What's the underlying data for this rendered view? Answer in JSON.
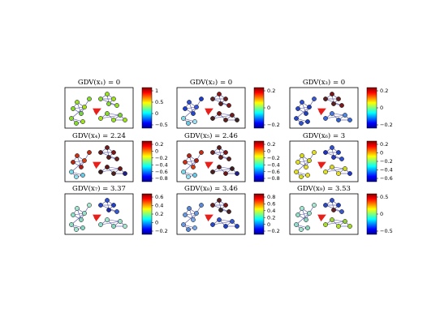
{
  "colors": {
    "edge": "#4a4aa8",
    "arrow": "#e8201c",
    "frame": "#000000",
    "node_stroke": "#000000"
  },
  "graph": {
    "nodes": [
      {
        "id": 0
      },
      {
        "id": 1
      },
      {
        "id": 2
      },
      {
        "id": 3
      },
      {
        "id": 4
      },
      {
        "id": 5
      },
      {
        "id": 6
      },
      {
        "id": 7
      },
      {
        "id": 8
      },
      {
        "id": 9
      },
      {
        "id": 10
      },
      {
        "id": 11
      },
      {
        "id": 12
      },
      {
        "id": 13
      },
      {
        "id": 14
      },
      {
        "id": 15
      },
      {
        "id": 16
      },
      {
        "id": 17
      }
    ],
    "edges": [
      [
        0,
        1
      ],
      [
        1,
        2
      ],
      [
        0,
        2
      ],
      [
        0,
        3
      ],
      [
        1,
        3
      ],
      [
        2,
        3
      ],
      [
        3,
        4
      ],
      [
        5,
        6
      ],
      [
        6,
        7
      ],
      [
        5,
        7
      ],
      [
        7,
        8
      ],
      [
        6,
        8
      ],
      [
        8,
        9
      ],
      [
        5,
        9
      ],
      [
        10,
        11
      ],
      [
        11,
        12
      ],
      [
        12,
        13
      ],
      [
        10,
        13
      ],
      [
        11,
        13
      ],
      [
        13,
        14
      ],
      [
        12,
        14
      ],
      [
        3,
        15
      ],
      [
        15,
        16
      ],
      [
        16,
        17
      ],
      [
        15,
        17
      ]
    ]
  },
  "panels": [
    {
      "title": "GDV(x₁) = 0",
      "colorbar": {
        "ticks": [
          "1",
          "0.5",
          "0",
          "−0.5"
        ]
      },
      "node_colors": [
        "#8ad830",
        "#9ae028",
        "#7ad048",
        "#a8e020",
        "#88d838",
        "#8ad830",
        "#9ae028",
        "#a0e020",
        "#8ad838",
        "#98dc30",
        "#a8e020",
        "#8ad830",
        "#9ae028",
        "#80d040",
        "#a0e020",
        "#90d838",
        "#88d838",
        "#a0e028"
      ]
    },
    {
      "title": "GDV(x₂) = 0",
      "colorbar": {
        "ticks": [
          "0.2",
          "0",
          "−0.2"
        ]
      },
      "node_colors": [
        "#2040c8",
        "#3050d0",
        "#2848c8",
        "#3a58d8",
        "#203cc0",
        "#5a2828",
        "#8a1818",
        "#6a2020",
        "#5a2020",
        "#7a1a1a",
        "#4a2424",
        "#7a1818",
        "#5a2020",
        "#6a2020",
        "#3a2828",
        "#88d8e8",
        "#70c8e0",
        "#a0e0f0"
      ]
    },
    {
      "title": "GDV(x₃) = 0",
      "colorbar": {
        "ticks": [
          "0.2",
          "0",
          "−0.2"
        ]
      },
      "node_colors": [
        "#2848c8",
        "#3050d0",
        "#2040c0",
        "#203cc0",
        "#3858d0",
        "#5a2020",
        "#7a1818",
        "#6a2020",
        "#5a2020",
        "#7a1a1a",
        "#3a68d8",
        "#4878e0",
        "#3060d0",
        "#5088e0",
        "#3a68d8",
        "#2848c8",
        "#3050d0",
        "#2040c0"
      ]
    },
    {
      "title": "GDV(x₄) = 2.24",
      "colorbar": {
        "ticks": [
          "0.2",
          "0",
          "−0.2",
          "−0.4",
          "−0.6",
          "−0.8"
        ]
      },
      "node_colors": [
        "#b02818",
        "#c83018",
        "#a82018",
        "#d04018",
        "#b83018",
        "#5a2020",
        "#6a2020",
        "#7a1818",
        "#5a2020",
        "#6a2020",
        "#3a2020",
        "#5a1818",
        "#4a2020",
        "#6a1818",
        "#202080",
        "#80d8e8",
        "#98e0f0",
        "#70c8e0"
      ]
    },
    {
      "title": "GDV(x₅) = 2.46",
      "colorbar": {
        "ticks": [
          "0.2",
          "0",
          "−0.2",
          "−0.4",
          "−0.6",
          "−0.8"
        ]
      },
      "node_colors": [
        "#c83018",
        "#b02818",
        "#d04018",
        "#a82018",
        "#c03018",
        "#6a2020",
        "#5a2020",
        "#7a1818",
        "#6a2020",
        "#5a2020",
        "#4a2020",
        "#5a1818",
        "#6a1818",
        "#3a2020",
        "#202080",
        "#80d8e8",
        "#98e0f0",
        "#70c8e0"
      ]
    },
    {
      "title": "GDV(x₆) = 3",
      "colorbar": {
        "ticks": [
          "0.2",
          "0",
          "−0.2",
          "−0.4",
          "−0.6"
        ]
      },
      "node_colors": [
        "#e0e020",
        "#d8d820",
        "#e8e028",
        "#d0d820",
        "#e0e020",
        "#2030c0",
        "#3050d0",
        "#2040c8",
        "#2838c0",
        "#3050d0",
        "#e0e020",
        "#d8d828",
        "#e8e020",
        "#d0d820",
        "#2038c8",
        "#e0e020",
        "#d8e020",
        "#e8e028"
      ]
    },
    {
      "title": "GDV(x₇) = 3.37",
      "colorbar": {
        "ticks": [
          "0.6",
          "0.4",
          "0.2",
          "0",
          "−0.2"
        ]
      },
      "node_colors": [
        "#90e0c8",
        "#a0e8d0",
        "#88d8c0",
        "#98e0c8",
        "#a8e8d0",
        "#2848c8",
        "#3050d0",
        "#2040c8",
        "#1c2ca8",
        "#3858d0",
        "#90e0c8",
        "#a0e8d0",
        "#88d8c0",
        "#98e0c8",
        "#a8e8d0",
        "#90e0c8",
        "#a0e8d0",
        "#88d8c0"
      ]
    },
    {
      "title": "GDV(x₈) = 3.46",
      "colorbar": {
        "ticks": [
          "0.8",
          "0.6",
          "0.4",
          "0.2",
          "0",
          "−0.2"
        ]
      },
      "node_colors": [
        "#6a98e0",
        "#5888d8",
        "#7aa8e8",
        "#6898e0",
        "#5a8ad8",
        "#6a2020",
        "#5a2020",
        "#7a1818",
        "#3a2828",
        "#4a2424",
        "#2848c8",
        "#3050d0",
        "#2040c8",
        "#3858d0",
        "#2848c8",
        "#6a98e0",
        "#5888d8",
        "#7aa8e8"
      ]
    },
    {
      "title": "GDV(x₉) = 3.53",
      "colorbar": {
        "ticks": [
          "0.5",
          "0",
          "−0.5"
        ]
      },
      "node_colors": [
        "#90e0c8",
        "#a0e8d0",
        "#88d8c0",
        "#98e0c8",
        "#a8e8d0",
        "#2848c8",
        "#3050d0",
        "#2040c8",
        "#6a2020",
        "#3858d0",
        "#a8e020",
        "#98d828",
        "#b0e818",
        "#90d030",
        "#a0e020",
        "#90e0c8",
        "#a0e8d0",
        "#88d8c0"
      ]
    }
  ]
}
